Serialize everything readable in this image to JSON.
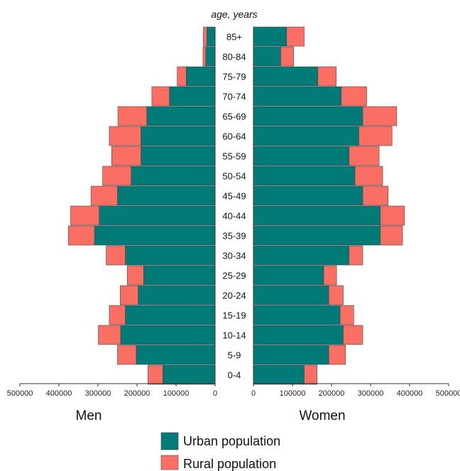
{
  "chart_data": {
    "type": "bar",
    "title": "",
    "ylabel": "age, years",
    "categories": [
      "85+",
      "80-84",
      "75-79",
      "70-74",
      "65-69",
      "60-64",
      "55-59",
      "50-54",
      "45-49",
      "40-44",
      "35-39",
      "30-34",
      "25-29",
      "20-24",
      "15-19",
      "10-14",
      "5-9",
      "0-4"
    ],
    "x_ticks_left": [
      "500000",
      "400000",
      "300000",
      "200000",
      "100000",
      "0"
    ],
    "x_ticks_right": [
      "0",
      "100000",
      "200000",
      "300000",
      "400000",
      "500000"
    ],
    "xlim": [
      0,
      500000
    ],
    "colors": {
      "urban": "#007b78",
      "rural": "#fa6e64"
    },
    "men": {
      "label": "Men",
      "urban": [
        21000,
        24000,
        74000,
        117000,
        175000,
        190000,
        190000,
        215000,
        250000,
        297000,
        309000,
        230000,
        183000,
        197000,
        230000,
        242000,
        202000,
        134000
      ],
      "rural": [
        9000,
        7000,
        23000,
        45000,
        74000,
        81000,
        75000,
        73000,
        68000,
        73000,
        67000,
        49000,
        42000,
        46000,
        41000,
        57000,
        48000,
        38000
      ]
    },
    "women": {
      "label": "Women",
      "urban": [
        85000,
        70000,
        165000,
        225000,
        280000,
        270000,
        245000,
        260000,
        280000,
        325000,
        325000,
        245000,
        180000,
        193000,
        222000,
        230000,
        193000,
        130000
      ],
      "rural": [
        45000,
        33000,
        47000,
        65000,
        87000,
        85000,
        77000,
        71000,
        65000,
        62000,
        57000,
        35000,
        33000,
        37000,
        35000,
        50000,
        43000,
        33000
      ]
    },
    "legend": [
      {
        "key": "urban",
        "label": "Urban population"
      },
      {
        "key": "rural",
        "label": "Rural population"
      }
    ],
    "legend_position": "bottom-center",
    "grid": false
  }
}
